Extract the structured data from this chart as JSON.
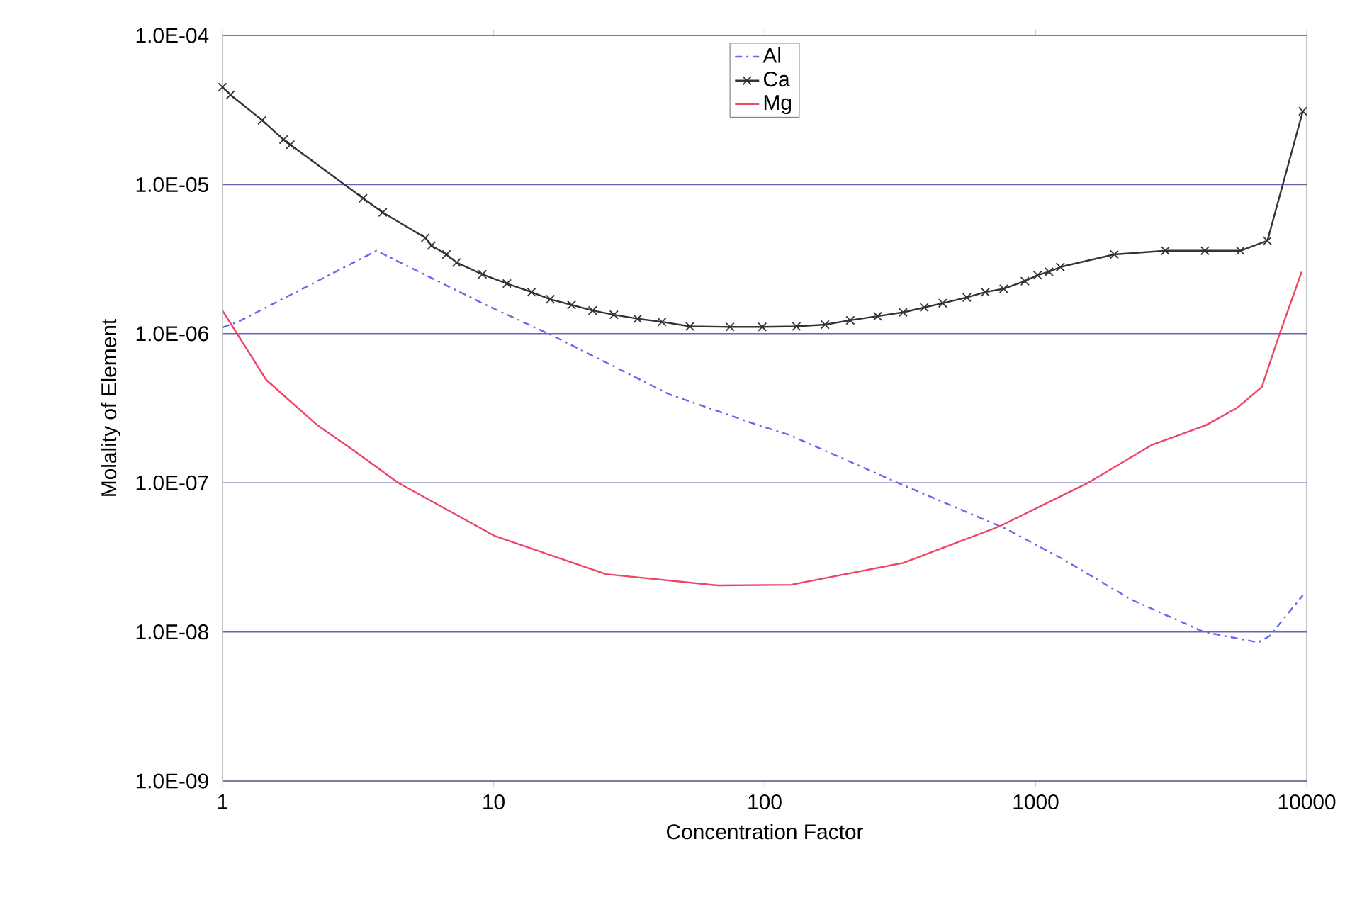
{
  "chart_data": {
    "type": "line",
    "xlabel": "Concentration Factor",
    "ylabel": "Molality of Element",
    "log": "xy",
    "grid": "y",
    "legend": "top",
    "xlim": [
      1,
      10000
    ],
    "ylim": [
      1e-09,
      0.0001
    ],
    "xticks": [
      1,
      10,
      100,
      1000,
      10000
    ],
    "yticks": [
      {
        "value": 1e-09,
        "label": "1.0E-09"
      },
      {
        "value": 1e-08,
        "label": "1.0E-08"
      },
      {
        "value": 1e-07,
        "label": "1.0E-07"
      },
      {
        "value": 1e-06,
        "label": "1.0E-06"
      },
      {
        "value": 1e-05,
        "label": "1.0E-05"
      },
      {
        "value": 0.0001,
        "label": "1.0E-04"
      }
    ],
    "series": [
      {
        "name": "Al",
        "color": "#6666ee",
        "line_style": "dashed",
        "marker": "none",
        "x": [
          1,
          1.14,
          3.7,
          9.1,
          16.5,
          44.8,
          97,
          123,
          310,
          780,
          1250,
          2250,
          4170,
          6630,
          7300,
          9670
        ],
        "values": [
          1.1e-06,
          1.2e-06,
          3.6e-06,
          1.6e-06,
          9.7e-07,
          3.9e-07,
          2.4e-07,
          2.1e-07,
          1e-07,
          4.9e-08,
          3.1e-08,
          1.65e-08,
          1e-08,
          8.5e-09,
          9.4e-09,
          1.76e-08
        ]
      },
      {
        "name": "Ca",
        "color": "#333333",
        "line_style": "solid",
        "marker": "cross",
        "x": [
          1,
          1.07,
          1.4,
          1.68,
          1.78,
          3.3,
          3.9,
          5.6,
          5.9,
          6.7,
          7.3,
          9.1,
          11.2,
          13.8,
          16.2,
          19.4,
          23.2,
          27.8,
          34,
          41.8,
          53,
          74.5,
          98,
          131,
          167,
          207,
          261,
          324,
          388,
          454,
          557,
          652,
          762,
          913,
          1016,
          1120,
          1233,
          1950,
          3010,
          4210,
          5690,
          7160,
          9670
        ],
        "values": [
          4.5e-05,
          4e-05,
          2.7e-05,
          2e-05,
          1.85e-05,
          8.1e-06,
          6.5e-06,
          4.4e-06,
          3.9e-06,
          3.4e-06,
          3e-06,
          2.5e-06,
          2.17e-06,
          1.9e-06,
          1.7e-06,
          1.56e-06,
          1.43e-06,
          1.34e-06,
          1.26e-06,
          1.2e-06,
          1.12e-06,
          1.11e-06,
          1.11e-06,
          1.12e-06,
          1.15e-06,
          1.23e-06,
          1.31e-06,
          1.39e-06,
          1.5e-06,
          1.6e-06,
          1.75e-06,
          1.9e-06,
          2e-06,
          2.25e-06,
          2.47e-06,
          2.6e-06,
          2.8e-06,
          3.4e-06,
          3.6e-06,
          3.6e-06,
          3.6e-06,
          4.2e-06,
          3.1e-05
        ]
      },
      {
        "name": "Mg",
        "color": "#ee4466",
        "line_style": "solid",
        "marker": "none",
        "x": [
          1,
          1.45,
          2.24,
          3.06,
          4.45,
          10.1,
          26,
          67,
          125,
          324,
          735,
          1560,
          2690,
          4240,
          5560,
          6830,
          7900,
          9580
        ],
        "values": [
          1.43e-06,
          4.9e-07,
          2.43e-07,
          1.64e-07,
          1e-07,
          4.4e-08,
          2.44e-08,
          2.05e-08,
          2.07e-08,
          2.9e-08,
          5.1e-08,
          1e-07,
          1.8e-07,
          2.43e-07,
          3.2e-07,
          4.4e-07,
          9.7e-07,
          2.6e-06
        ]
      }
    ]
  }
}
